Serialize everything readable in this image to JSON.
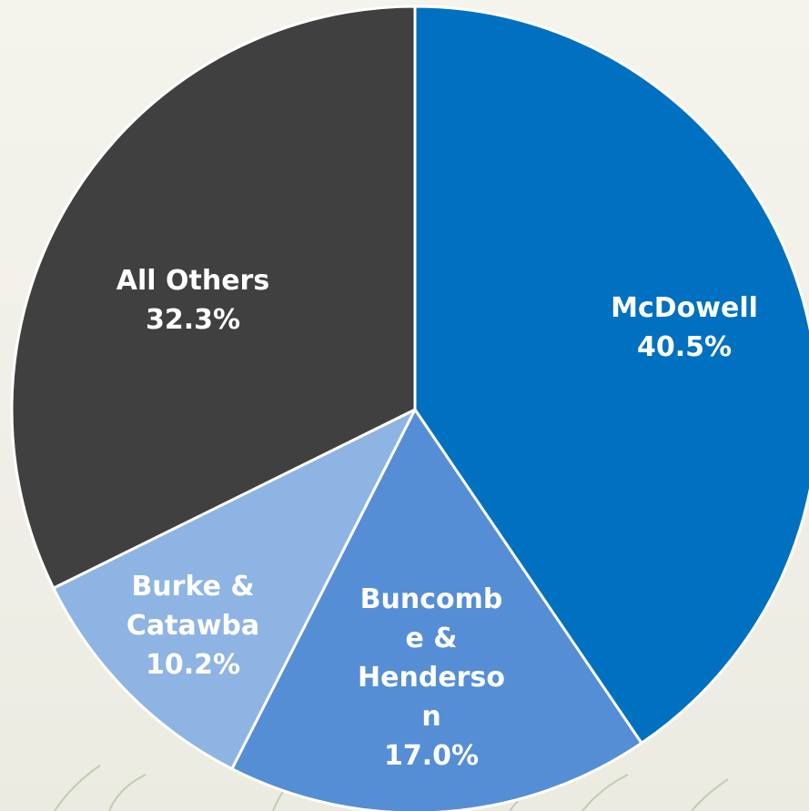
{
  "chart_data": {
    "type": "pie",
    "title": "",
    "slices": [
      {
        "label_lines": [
          "McDowell"
        ],
        "value": 40.5,
        "value_text": "40.5%",
        "color": "#0070c0"
      },
      {
        "label_lines": [
          "Buncomb",
          "e &",
          "Henderso",
          "n"
        ],
        "value": 17.0,
        "value_text": "17.0%",
        "color": "#558ed5"
      },
      {
        "label_lines": [
          "Burke &",
          "Catawba"
        ],
        "value": 10.2,
        "value_text": "10.2%",
        "color": "#8eb4e3"
      },
      {
        "label_lines": [
          "All Others"
        ],
        "value": 32.3,
        "value_text": "32.3%",
        "color": "#404040"
      }
    ],
    "start": "12 o'clock",
    "direction": "clockwise",
    "legend": "none",
    "labels": "inside slices, white bold"
  },
  "colors": {
    "slice_border": "#ffffff",
    "label_text": "#ffffff",
    "background": "#f2f1ea"
  }
}
